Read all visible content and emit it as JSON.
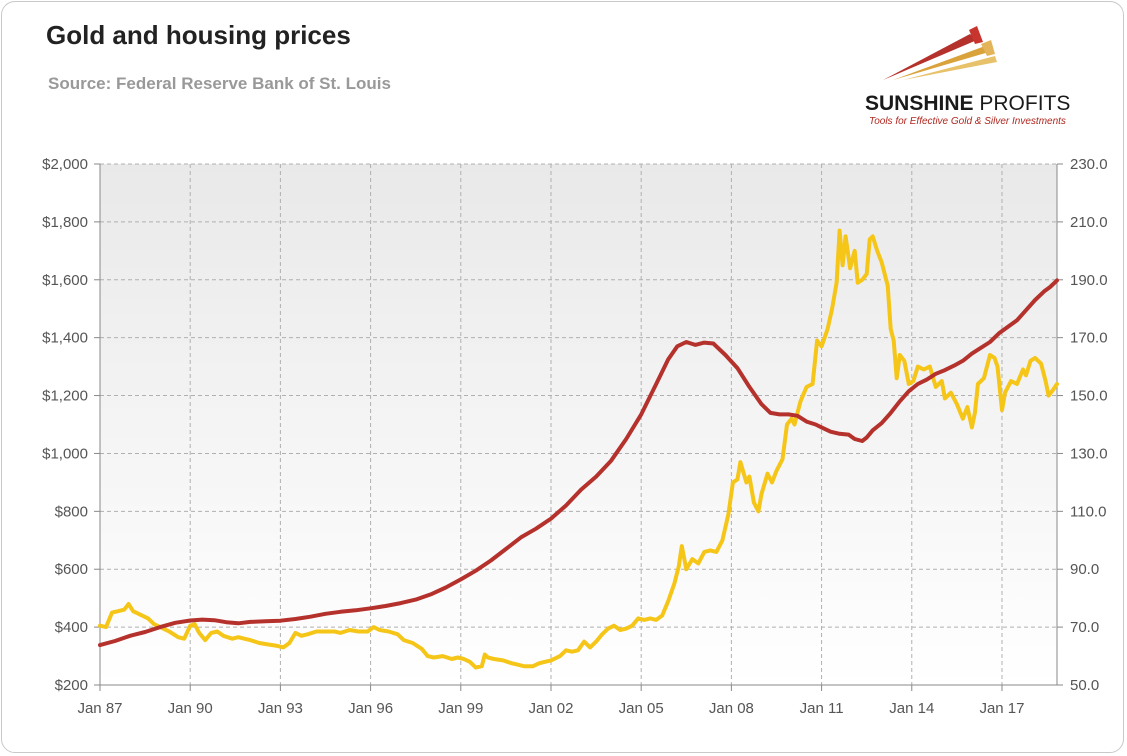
{
  "header": {
    "title": "Gold and housing prices",
    "subtitle": "Source: Federal Reserve Bank of St. Louis"
  },
  "logo": {
    "name_bold": "SUNSHINE",
    "name_light": " PROFITS",
    "tagline": "Tools for Effective Gold & Silver Investments"
  },
  "colors": {
    "gold": "#f5c518",
    "housing": "#b5312c",
    "grid": "#b0b0b0"
  },
  "chart_data": {
    "type": "line",
    "title": "Gold and housing prices",
    "xlim": [
      1987.0,
      2018.83
    ],
    "x_ticks": [
      {
        "x": 1987,
        "label": "Jan 87"
      },
      {
        "x": 1990,
        "label": "Jan 90"
      },
      {
        "x": 1993,
        "label": "Jan 93"
      },
      {
        "x": 1996,
        "label": "Jan 96"
      },
      {
        "x": 1999,
        "label": "Jan 99"
      },
      {
        "x": 2002,
        "label": "Jan 02"
      },
      {
        "x": 2005,
        "label": "Jan 05"
      },
      {
        "x": 2008,
        "label": "Jan 08"
      },
      {
        "x": 2011,
        "label": "Jan 11"
      },
      {
        "x": 2014,
        "label": "Jan 14"
      },
      {
        "x": 2017,
        "label": "Jan 17"
      }
    ],
    "y_left": {
      "range": [
        200,
        2000
      ],
      "ticks": [
        {
          "v": 200,
          "label": "$200"
        },
        {
          "v": 400,
          "label": "$400"
        },
        {
          "v": 600,
          "label": "$600"
        },
        {
          "v": 800,
          "label": "$800"
        },
        {
          "v": 1000,
          "label": "$1,000"
        },
        {
          "v": 1200,
          "label": "$1,200"
        },
        {
          "v": 1400,
          "label": "$1,400"
        },
        {
          "v": 1600,
          "label": "$1,600"
        },
        {
          "v": 1800,
          "label": "$1,800"
        },
        {
          "v": 2000,
          "label": "$2,000"
        }
      ]
    },
    "y_right": {
      "range": [
        50,
        230
      ],
      "ticks": [
        {
          "v": 50,
          "label": "50.0"
        },
        {
          "v": 70,
          "label": "70.0"
        },
        {
          "v": 90,
          "label": "90.0"
        },
        {
          "v": 110,
          "label": "110.0"
        },
        {
          "v": 130,
          "label": "130.0"
        },
        {
          "v": 150,
          "label": "150.0"
        },
        {
          "v": 170,
          "label": "170.0"
        },
        {
          "v": 190,
          "label": "190.0"
        },
        {
          "v": 210,
          "label": "210.0"
        },
        {
          "v": 230,
          "label": "230.0"
        }
      ]
    },
    "grid": true,
    "series": [
      {
        "key": "gold",
        "axis": "left",
        "points": [
          [
            1987.0,
            405
          ],
          [
            1987.2,
            400
          ],
          [
            1987.4,
            450
          ],
          [
            1987.6,
            455
          ],
          [
            1987.8,
            460
          ],
          [
            1987.95,
            480
          ],
          [
            1988.1,
            455
          ],
          [
            1988.3,
            445
          ],
          [
            1988.6,
            430
          ],
          [
            1988.8,
            410
          ],
          [
            1989.0,
            400
          ],
          [
            1989.3,
            385
          ],
          [
            1989.6,
            365
          ],
          [
            1989.8,
            360
          ],
          [
            1990.0,
            405
          ],
          [
            1990.15,
            410
          ],
          [
            1990.3,
            380
          ],
          [
            1990.5,
            355
          ],
          [
            1990.7,
            380
          ],
          [
            1990.9,
            385
          ],
          [
            1991.1,
            370
          ],
          [
            1991.4,
            360
          ],
          [
            1991.6,
            365
          ],
          [
            1991.8,
            360
          ],
          [
            1992.0,
            355
          ],
          [
            1992.3,
            345
          ],
          [
            1992.6,
            340
          ],
          [
            1992.9,
            335
          ],
          [
            1993.1,
            330
          ],
          [
            1993.3,
            345
          ],
          [
            1993.5,
            380
          ],
          [
            1993.7,
            370
          ],
          [
            1993.9,
            375
          ],
          [
            1994.2,
            385
          ],
          [
            1994.5,
            385
          ],
          [
            1994.8,
            385
          ],
          [
            1995.0,
            380
          ],
          [
            1995.3,
            390
          ],
          [
            1995.6,
            385
          ],
          [
            1995.9,
            385
          ],
          [
            1996.1,
            400
          ],
          [
            1996.3,
            390
          ],
          [
            1996.6,
            385
          ],
          [
            1996.9,
            375
          ],
          [
            1997.1,
            355
          ],
          [
            1997.4,
            345
          ],
          [
            1997.7,
            325
          ],
          [
            1997.9,
            300
          ],
          [
            1998.1,
            295
          ],
          [
            1998.4,
            300
          ],
          [
            1998.7,
            290
          ],
          [
            1998.9,
            295
          ],
          [
            1999.1,
            290
          ],
          [
            1999.3,
            280
          ],
          [
            1999.5,
            260
          ],
          [
            1999.7,
            265
          ],
          [
            1999.8,
            305
          ],
          [
            1999.9,
            295
          ],
          [
            2000.1,
            290
          ],
          [
            2000.4,
            285
          ],
          [
            2000.7,
            275
          ],
          [
            2000.9,
            270
          ],
          [
            2001.1,
            265
          ],
          [
            2001.4,
            265
          ],
          [
            2001.6,
            275
          ],
          [
            2001.8,
            280
          ],
          [
            2002.0,
            285
          ],
          [
            2002.3,
            300
          ],
          [
            2002.5,
            320
          ],
          [
            2002.7,
            315
          ],
          [
            2002.9,
            320
          ],
          [
            2003.1,
            350
          ],
          [
            2003.3,
            330
          ],
          [
            2003.5,
            350
          ],
          [
            2003.7,
            375
          ],
          [
            2003.9,
            395
          ],
          [
            2004.1,
            405
          ],
          [
            2004.3,
            390
          ],
          [
            2004.5,
            395
          ],
          [
            2004.7,
            405
          ],
          [
            2004.9,
            430
          ],
          [
            2005.1,
            425
          ],
          [
            2005.3,
            430
          ],
          [
            2005.5,
            425
          ],
          [
            2005.7,
            440
          ],
          [
            2005.9,
            490
          ],
          [
            2006.1,
            550
          ],
          [
            2006.25,
            610
          ],
          [
            2006.35,
            680
          ],
          [
            2006.5,
            600
          ],
          [
            2006.7,
            635
          ],
          [
            2006.9,
            620
          ],
          [
            2007.1,
            660
          ],
          [
            2007.3,
            665
          ],
          [
            2007.5,
            660
          ],
          [
            2007.7,
            700
          ],
          [
            2007.9,
            790
          ],
          [
            2008.05,
            900
          ],
          [
            2008.2,
            910
          ],
          [
            2008.3,
            970
          ],
          [
            2008.5,
            900
          ],
          [
            2008.6,
            920
          ],
          [
            2008.75,
            830
          ],
          [
            2008.9,
            800
          ],
          [
            2009.0,
            860
          ],
          [
            2009.2,
            930
          ],
          [
            2009.35,
            900
          ],
          [
            2009.5,
            940
          ],
          [
            2009.7,
            980
          ],
          [
            2009.85,
            1100
          ],
          [
            2010.0,
            1120
          ],
          [
            2010.1,
            1100
          ],
          [
            2010.3,
            1180
          ],
          [
            2010.5,
            1230
          ],
          [
            2010.7,
            1240
          ],
          [
            2010.85,
            1390
          ],
          [
            2011.0,
            1370
          ],
          [
            2011.2,
            1430
          ],
          [
            2011.35,
            1500
          ],
          [
            2011.5,
            1590
          ],
          [
            2011.6,
            1770
          ],
          [
            2011.7,
            1650
          ],
          [
            2011.8,
            1750
          ],
          [
            2011.95,
            1640
          ],
          [
            2012.1,
            1700
          ],
          [
            2012.2,
            1590
          ],
          [
            2012.35,
            1600
          ],
          [
            2012.5,
            1620
          ],
          [
            2012.6,
            1740
          ],
          [
            2012.7,
            1750
          ],
          [
            2012.85,
            1700
          ],
          [
            2013.0,
            1660
          ],
          [
            2013.2,
            1580
          ],
          [
            2013.3,
            1430
          ],
          [
            2013.4,
            1390
          ],
          [
            2013.5,
            1260
          ],
          [
            2013.6,
            1340
          ],
          [
            2013.75,
            1320
          ],
          [
            2013.9,
            1240
          ],
          [
            2014.05,
            1250
          ],
          [
            2014.2,
            1300
          ],
          [
            2014.4,
            1290
          ],
          [
            2014.6,
            1300
          ],
          [
            2014.8,
            1230
          ],
          [
            2015.0,
            1250
          ],
          [
            2015.1,
            1190
          ],
          [
            2015.3,
            1210
          ],
          [
            2015.5,
            1170
          ],
          [
            2015.7,
            1120
          ],
          [
            2015.85,
            1160
          ],
          [
            2016.0,
            1090
          ],
          [
            2016.1,
            1140
          ],
          [
            2016.2,
            1240
          ],
          [
            2016.4,
            1260
          ],
          [
            2016.6,
            1340
          ],
          [
            2016.75,
            1330
          ],
          [
            2016.85,
            1300
          ],
          [
            2017.0,
            1150
          ],
          [
            2017.1,
            1210
          ],
          [
            2017.3,
            1250
          ],
          [
            2017.5,
            1240
          ],
          [
            2017.7,
            1290
          ],
          [
            2017.8,
            1270
          ],
          [
            2017.95,
            1320
          ],
          [
            2018.1,
            1330
          ],
          [
            2018.3,
            1310
          ],
          [
            2018.45,
            1250
          ],
          [
            2018.55,
            1200
          ],
          [
            2018.7,
            1220
          ],
          [
            2018.83,
            1240
          ]
        ]
      },
      {
        "key": "housing",
        "axis": "right",
        "points": [
          [
            1987.0,
            63.8
          ],
          [
            1987.5,
            65.2
          ],
          [
            1988.0,
            67.0
          ],
          [
            1988.5,
            68.3
          ],
          [
            1989.0,
            70.0
          ],
          [
            1989.5,
            71.5
          ],
          [
            1990.0,
            72.3
          ],
          [
            1990.4,
            72.6
          ],
          [
            1990.8,
            72.4
          ],
          [
            1991.2,
            71.7
          ],
          [
            1991.6,
            71.3
          ],
          [
            1992.0,
            71.8
          ],
          [
            1992.5,
            72.0
          ],
          [
            1993.0,
            72.2
          ],
          [
            1993.5,
            72.8
          ],
          [
            1994.0,
            73.6
          ],
          [
            1994.5,
            74.6
          ],
          [
            1995.0,
            75.3
          ],
          [
            1995.5,
            75.8
          ],
          [
            1996.0,
            76.5
          ],
          [
            1996.5,
            77.3
          ],
          [
            1997.0,
            78.3
          ],
          [
            1997.5,
            79.5
          ],
          [
            1998.0,
            81.3
          ],
          [
            1998.5,
            83.7
          ],
          [
            1999.0,
            86.5
          ],
          [
            1999.5,
            89.5
          ],
          [
            2000.0,
            93.0
          ],
          [
            2000.5,
            97.0
          ],
          [
            2001.0,
            101.0
          ],
          [
            2001.5,
            104.0
          ],
          [
            2002.0,
            107.5
          ],
          [
            2002.5,
            112.0
          ],
          [
            2003.0,
            117.5
          ],
          [
            2003.5,
            122.0
          ],
          [
            2004.0,
            127.5
          ],
          [
            2004.5,
            135.0
          ],
          [
            2005.0,
            143.5
          ],
          [
            2005.5,
            154.0
          ],
          [
            2005.9,
            162.5
          ],
          [
            2006.2,
            167.0
          ],
          [
            2006.5,
            168.5
          ],
          [
            2006.8,
            167.5
          ],
          [
            2007.1,
            168.3
          ],
          [
            2007.4,
            168.0
          ],
          [
            2007.8,
            164.0
          ],
          [
            2008.2,
            159.5
          ],
          [
            2008.6,
            153.0
          ],
          [
            2009.0,
            147.0
          ],
          [
            2009.3,
            144.0
          ],
          [
            2009.6,
            143.5
          ],
          [
            2009.9,
            143.5
          ],
          [
            2010.2,
            143.0
          ],
          [
            2010.5,
            141.0
          ],
          [
            2010.8,
            140.0
          ],
          [
            2011.0,
            139.0
          ],
          [
            2011.3,
            137.5
          ],
          [
            2011.6,
            136.8
          ],
          [
            2011.9,
            136.5
          ],
          [
            2012.1,
            135.0
          ],
          [
            2012.35,
            134.3
          ],
          [
            2012.5,
            135.5
          ],
          [
            2012.7,
            138.0
          ],
          [
            2013.0,
            140.5
          ],
          [
            2013.3,
            144.0
          ],
          [
            2013.6,
            148.0
          ],
          [
            2013.9,
            151.5
          ],
          [
            2014.2,
            154.0
          ],
          [
            2014.5,
            155.5
          ],
          [
            2014.8,
            157.5
          ],
          [
            2015.1,
            158.8
          ],
          [
            2015.4,
            160.3
          ],
          [
            2015.7,
            162.0
          ],
          [
            2016.0,
            164.5
          ],
          [
            2016.3,
            166.5
          ],
          [
            2016.6,
            168.5
          ],
          [
            2016.9,
            171.5
          ],
          [
            2017.2,
            173.8
          ],
          [
            2017.5,
            176.0
          ],
          [
            2017.8,
            179.5
          ],
          [
            2018.1,
            183.0
          ],
          [
            2018.4,
            186.0
          ],
          [
            2018.6,
            187.5
          ],
          [
            2018.83,
            189.8
          ]
        ]
      }
    ]
  }
}
